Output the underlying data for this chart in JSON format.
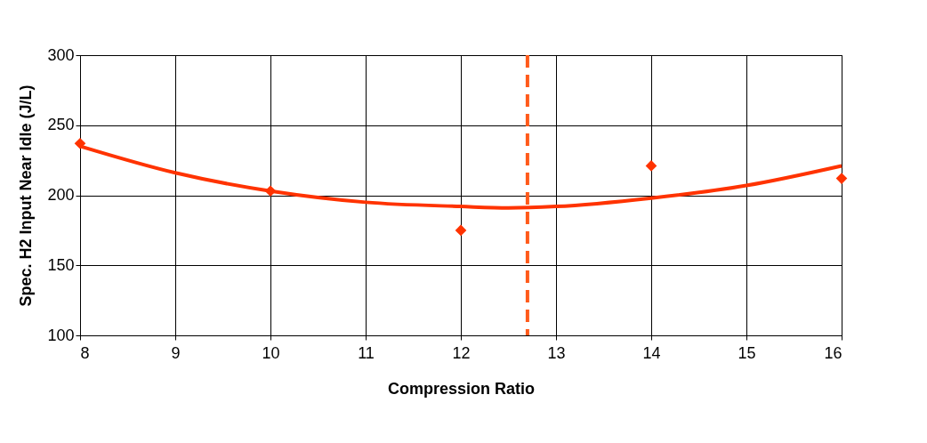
{
  "chart_data": {
    "type": "scatter",
    "xlabel": "Compression Ratio",
    "ylabel": "Spec. H2 Input Near Idle (J/L)",
    "xlim": [
      8,
      16
    ],
    "xticks": [
      8,
      9,
      10,
      11,
      12,
      13,
      14,
      15,
      16
    ],
    "ylim": [
      100,
      300
    ],
    "yticks": [
      100,
      150,
      200,
      250,
      300
    ],
    "grid": true,
    "series": [
      {
        "color": "#ff3300",
        "marker": "diamond",
        "x": [
          8,
          10,
          12,
          14,
          16
        ],
        "values": [
          237,
          203,
          175,
          221,
          212
        ]
      },
      {
        "type": "line",
        "color": "#ff3300",
        "line_style": "solid",
        "x": [
          8,
          9,
          10,
          11,
          12,
          12.5,
          13,
          14,
          15,
          16
        ],
        "values": [
          235,
          216,
          203,
          195,
          192,
          191,
          192,
          198,
          207,
          221
        ]
      }
    ],
    "ref_lines": [
      {
        "axis": "x",
        "value": 12.7,
        "color": "#ff5a1a",
        "line_style": "dashed"
      }
    ]
  }
}
